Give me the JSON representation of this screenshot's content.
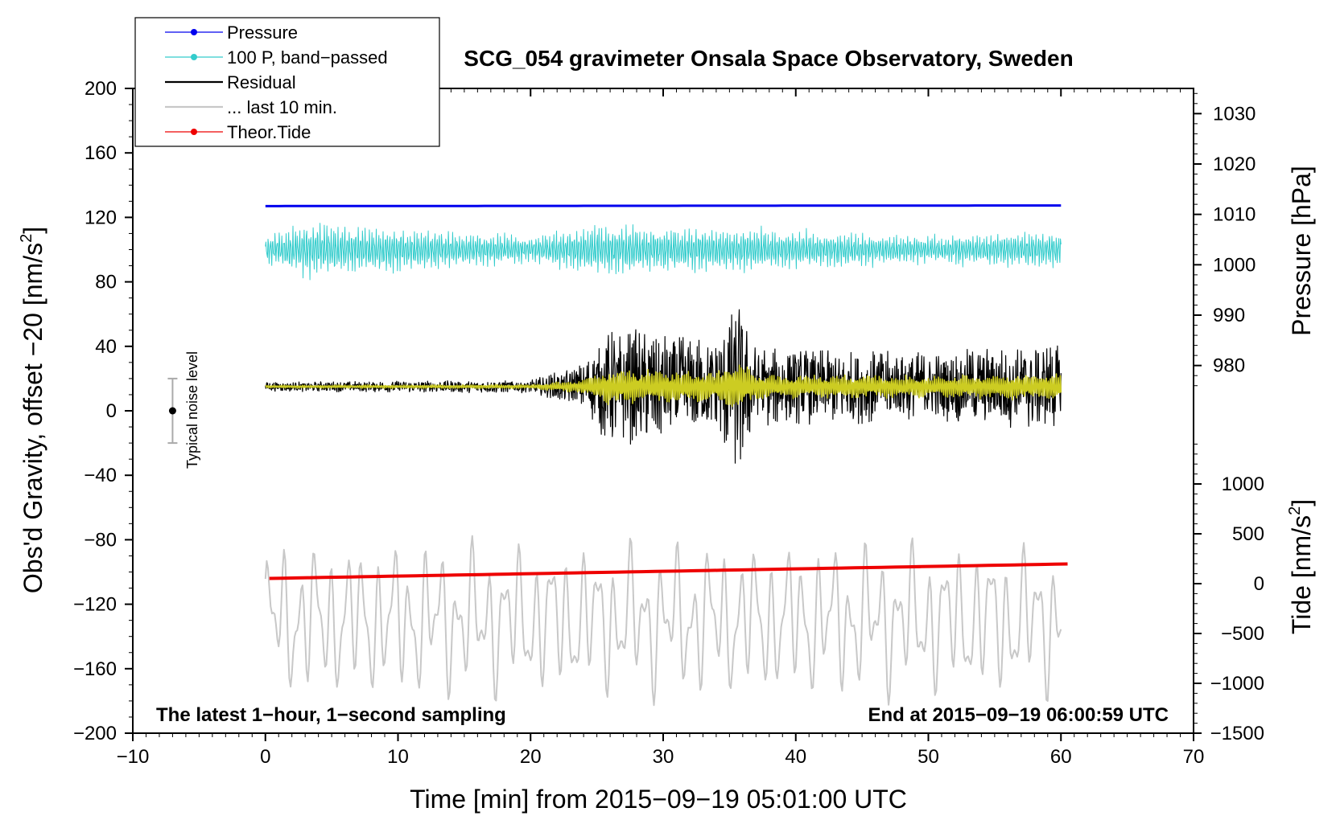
{
  "chart_data": {
    "type": "line",
    "title": "SCG_054 gravimeter Onsala Space Observatory, Sweden",
    "subtitle_left": "The latest 1−hour, 1−second sampling",
    "subtitle_right": "End at 2015−09−19 06:00:59 UTC",
    "xlabel": "Time [min] from 2015−09−19 05:01:00 UTC",
    "ylabel": "Obs'd Gravity, offset −20 [nm/s",
    "ylabel_sup": "2",
    "ylabel_close": "]",
    "y2label_pressure": "Pressure [hPa]",
    "y2label_tide": "Tide [nm/s",
    "y2label_tide_sup": "2",
    "y2label_tide_close": "]",
    "xlim": [
      -10,
      70
    ],
    "ylim": [
      -200,
      200
    ],
    "x_ticks": [
      "−10",
      "0",
      "10",
      "20",
      "30",
      "40",
      "50",
      "60",
      "70"
    ],
    "y_ticks": [
      "200",
      "160",
      "120",
      "80",
      "40",
      "0",
      "−40",
      "−80",
      "−120",
      "−160",
      "−200"
    ],
    "pressure_ticks": [
      "1030",
      "1020",
      "1010",
      "1000",
      "990",
      "980"
    ],
    "pressure_range": [
      975,
      1035
    ],
    "tide_ticks": [
      "1000",
      "500",
      "0",
      "−500",
      "−1000",
      "−1500"
    ],
    "tide_range": [
      -1500,
      1500
    ],
    "noise_label": "Typical noise level",
    "noise_level": {
      "x": -7,
      "center": 0,
      "low": -20,
      "high": 20
    },
    "legend": [
      "Pressure",
      "100 P, band−passed",
      "Residual",
      "... last 10 min.",
      "Theor.Tide"
    ],
    "colors": {
      "pressure": "#0000ee",
      "bandpassed": "#33cccc",
      "residual": "#000000",
      "last10": "#c8c8c8",
      "tide": "#ee0000",
      "overlay": "#cccc22"
    },
    "series": [
      {
        "name": "Pressure",
        "display_offset_nm_s2": 127,
        "x_range": [
          0,
          60
        ],
        "values_hPa_start_end": [
          1010.6,
          1010.9
        ]
      },
      {
        "name": "100 P, band−passed",
        "center": 100,
        "amplitude_envelope": [
          [
            0,
            10
          ],
          [
            3,
            20
          ],
          [
            20,
            10
          ],
          [
            25,
            18
          ],
          [
            35,
            16
          ],
          [
            50,
            10
          ],
          [
            60,
            14
          ]
        ]
      },
      {
        "name": "Residual",
        "center": 15,
        "amplitude_envelope": [
          [
            0,
            3
          ],
          [
            20,
            4
          ],
          [
            24,
            15
          ],
          [
            26,
            38
          ],
          [
            34,
            30
          ],
          [
            35.8,
            58
          ],
          [
            37,
            25
          ],
          [
            50,
            22
          ],
          [
            60,
            28
          ]
        ]
      },
      {
        "name": "... last 10 min.",
        "center": -130,
        "amplitude": 45
      },
      {
        "name": "Theor.Tide",
        "x": [
          0.3,
          60.5
        ],
        "values_display": [
          -104,
          -95
        ]
      }
    ]
  }
}
